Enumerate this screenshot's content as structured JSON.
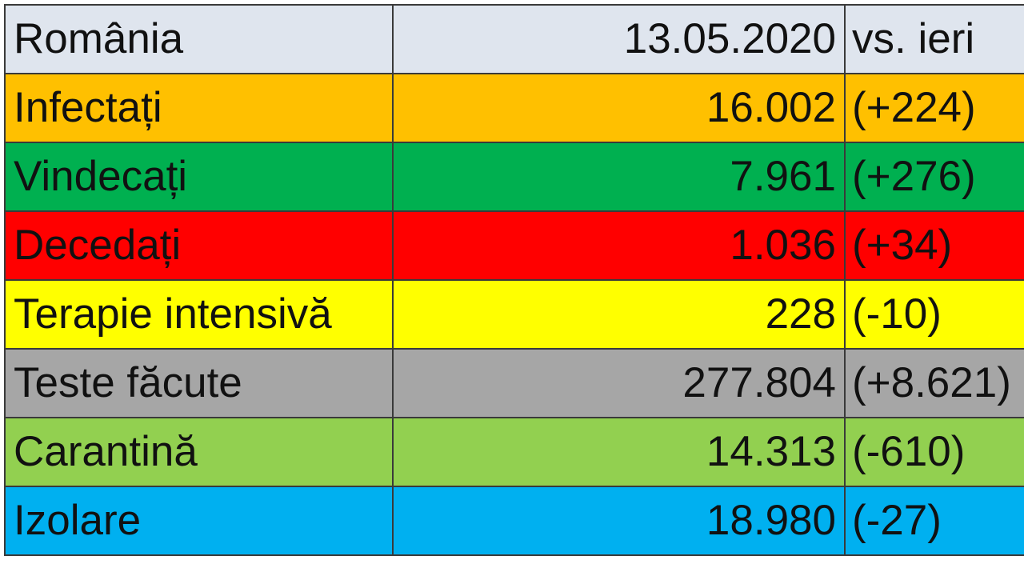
{
  "table": {
    "header": {
      "cells": [
        "România",
        "13.05.2020",
        "vs. ieri"
      ],
      "color": "#dfe5ee"
    },
    "rows": [
      {
        "cells": [
          "Infectați",
          "16.002",
          "(+224)"
        ],
        "color": "#ffc000"
      },
      {
        "cells": [
          "Vindecați",
          "7.961",
          "(+276)"
        ],
        "color": "#00b050"
      },
      {
        "cells": [
          "Decedați",
          "1.036",
          "(+34)"
        ],
        "color": "#ff0000"
      },
      {
        "cells": [
          "Terapie intensivă",
          "228",
          "(-10)"
        ],
        "color": "#ffff00"
      },
      {
        "cells": [
          "Teste făcute",
          "277.804",
          "(+8.621)"
        ],
        "color": "#a6a6a6"
      },
      {
        "cells": [
          "Carantină",
          "14.313",
          "(-610)"
        ],
        "color": "#92d050"
      },
      {
        "cells": [
          "Izolare",
          "18.980",
          "(-27)"
        ],
        "color": "#00b0f0"
      }
    ]
  }
}
